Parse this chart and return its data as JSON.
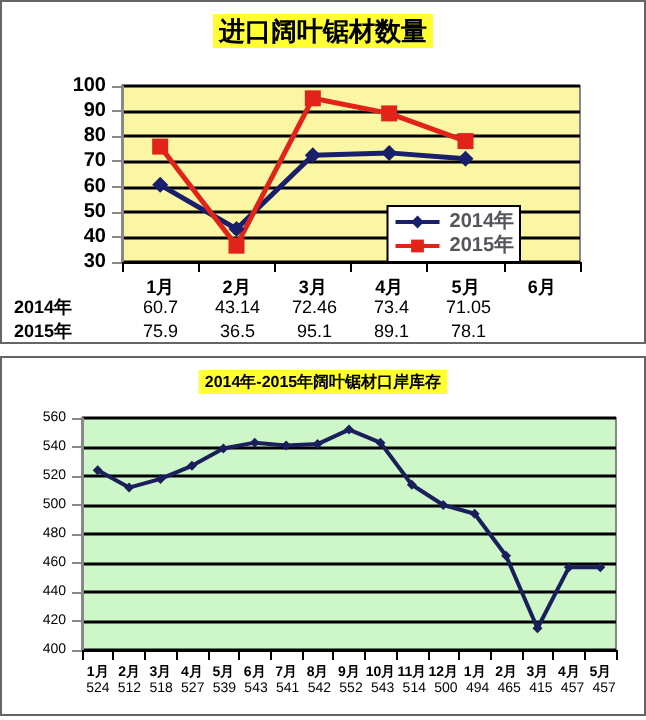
{
  "chart_data": [
    {
      "type": "line",
      "title": "进口阔叶锯材数量",
      "categories": [
        "1月",
        "2月",
        "3月",
        "4月",
        "5月",
        "6月"
      ],
      "series": [
        {
          "name": "2014年",
          "color": "#1a1f6b",
          "marker": "diamond",
          "values": [
            60.7,
            43.14,
            72.46,
            73.4,
            71.05,
            null
          ]
        },
        {
          "name": "2015年",
          "color": "#e2231a",
          "marker": "square",
          "values": [
            75.9,
            36.5,
            95.1,
            89.1,
            78.1,
            null
          ]
        }
      ],
      "ylim": [
        30,
        100
      ],
      "yticks": [
        30,
        40,
        50,
        60,
        70,
        80,
        90,
        100
      ],
      "grid": "y",
      "legend": "right",
      "data_labels": true
    },
    {
      "type": "line",
      "title": "2014年-2015年阔叶锯材口岸库存",
      "categories": [
        "1月",
        "2月",
        "3月",
        "4月",
        "5月",
        "6月",
        "7月",
        "8月",
        "9月",
        "10月",
        "11月",
        "12月",
        "1月",
        "2月",
        "3月",
        "4月",
        "5月"
      ],
      "series": [
        {
          "color": "#1a1f5c",
          "marker": "diamond",
          "values": [
            524,
            512,
            518,
            527,
            539,
            543,
            541,
            542,
            552,
            543,
            514,
            500,
            494,
            465,
            415,
            457,
            457
          ]
        }
      ],
      "ylim": [
        400,
        560
      ],
      "yticks": [
        400,
        420,
        440,
        460,
        480,
        500,
        520,
        540,
        560
      ],
      "grid": "y",
      "data_labels": true
    }
  ]
}
